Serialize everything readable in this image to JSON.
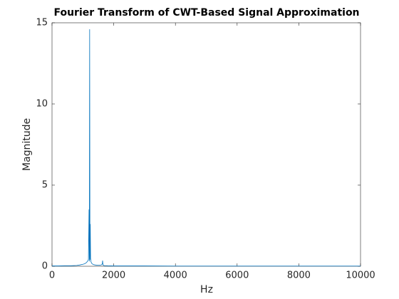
{
  "chart_data": {
    "type": "line",
    "title": "Fourier Transform of CWT-Based Signal Approximation",
    "xlabel": "Hz",
    "ylabel": "Magnitude",
    "x": [
      0,
      200,
      400,
      600,
      800,
      900,
      1000,
      1050,
      1100,
      1150,
      1180,
      1200,
      1210,
      1220,
      1230,
      1240,
      1250,
      1260,
      1280,
      1300,
      1350,
      1400,
      1500,
      1600,
      1630,
      1640,
      1650,
      1660,
      1700,
      1800,
      2000,
      3000,
      4000,
      5000,
      6000,
      7000,
      8000,
      9000,
      10000
    ],
    "values": [
      0.02,
      0.02,
      0.03,
      0.03,
      0.05,
      0.08,
      0.12,
      0.15,
      0.2,
      0.3,
      0.4,
      3.5,
      0.3,
      14.6,
      0.4,
      2.6,
      0.5,
      0.3,
      0.2,
      0.15,
      0.1,
      0.08,
      0.06,
      0.08,
      0.15,
      0.35,
      0.12,
      0.06,
      0.04,
      0.03,
      0.02,
      0.02,
      0.01,
      0.01,
      0.01,
      0.01,
      0.01,
      0.01,
      0.01
    ],
    "color": "#0072bd",
    "xlim": [
      0,
      10000
    ],
    "xticks": [
      0,
      2000,
      4000,
      6000,
      8000,
      10000
    ],
    "ylim": [
      0,
      15
    ],
    "yticks": [
      0,
      5,
      10,
      15
    ],
    "grid": false
  }
}
